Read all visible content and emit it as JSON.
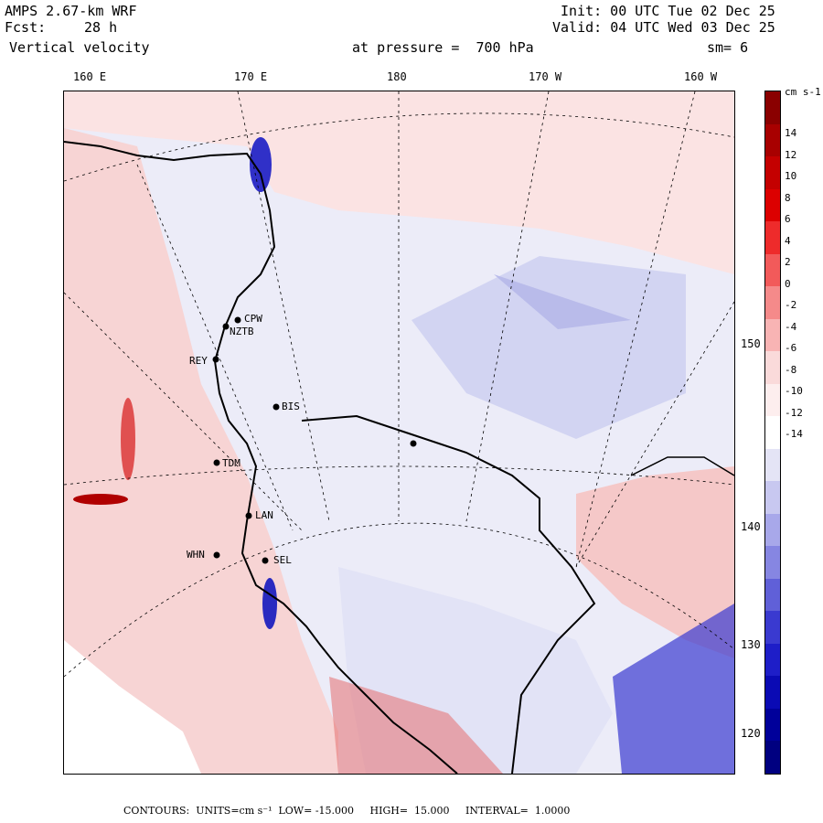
{
  "header": {
    "model": "AMPS 2.67-km WRF",
    "fcst_label": "Fcst:",
    "fcst_value": "28 h",
    "field": "Vertical velocity",
    "init": "Init: 00 UTC Tue 02 Dec 25",
    "valid": "Valid: 04 UTC Wed 03 Dec 25",
    "pressure": "at pressure =  700 hPa",
    "smoothing": "sm= 6"
  },
  "lon_labels": [
    "160 E",
    "170 E",
    "180",
    "170 W",
    "160 W"
  ],
  "lat_labels": [
    "150 W",
    "140 W",
    "130 W",
    "120 W"
  ],
  "stations": [
    {
      "id": "CPW"
    },
    {
      "id": "NZTB"
    },
    {
      "id": "REY"
    },
    {
      "id": "BIS"
    },
    {
      "id": "TDM"
    },
    {
      "id": "LAN"
    },
    {
      "id": "WHN"
    },
    {
      "id": "SEL"
    },
    {
      "id": ""
    }
  ],
  "colorbar": {
    "unit": "cm s-1",
    "ticks": [
      "14",
      "12",
      "10",
      "8",
      "6",
      "4",
      "2",
      "0",
      "-2",
      "-4",
      "-6",
      "-8",
      "-10",
      "-12",
      "-14"
    ],
    "colors": [
      "#8a0000",
      "#a80000",
      "#c40000",
      "#dc0000",
      "#ee2b2b",
      "#f25a5a",
      "#f58a8a",
      "#f8b4b4",
      "#fadada",
      "#fdeeee",
      "#ffffff",
      "#e4e4f6",
      "#c8c8f0",
      "#a8a8ea",
      "#8686e2",
      "#6060d8",
      "#3a3ad0",
      "#1e1ec8",
      "#0a0ab4",
      "#00009a",
      "#000080"
    ]
  },
  "footer": {
    "text": "CONTOURS:  UNITS=cm s⁻¹  LOW= -15.000     HIGH=  15.000     INTERVAL=  1.0000"
  },
  "colors": {
    "positive": "#f5c4c4",
    "negative": "#c6c8ee",
    "coast": "#000000"
  }
}
